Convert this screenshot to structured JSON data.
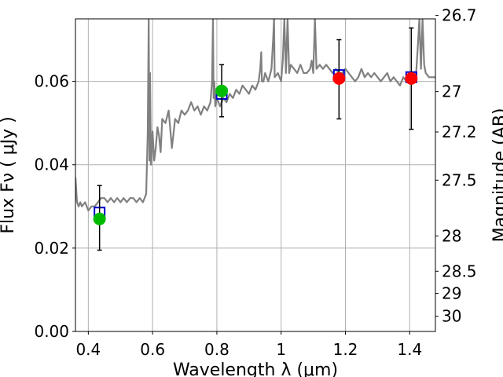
{
  "chart_data": {
    "type": "line",
    "xlabel": "Wavelength  λ (μm)",
    "ylabel": "Flux  Fν  ( μJy )",
    "y2label": "Magnitude (AB)",
    "xlim": [
      0.36,
      1.48
    ],
    "ylim": [
      0.0,
      0.075
    ],
    "grid": true,
    "x_ticks": [
      {
        "value": 0.4,
        "label": "0.4"
      },
      {
        "value": 0.6,
        "label": "0.6"
      },
      {
        "value": 0.8,
        "label": "0.8"
      },
      {
        "value": 1.0,
        "label": "1"
      },
      {
        "value": 1.2,
        "label": "1.2"
      },
      {
        "value": 1.4,
        "label": "1.4"
      }
    ],
    "y_ticks": [
      {
        "value": 0.0,
        "label": "0.00"
      },
      {
        "value": 0.02,
        "label": "0.02"
      },
      {
        "value": 0.04,
        "label": "0.04"
      },
      {
        "value": 0.06,
        "label": "0.06"
      }
    ],
    "y2_ticks": [
      {
        "value": 26.7,
        "label": "26.7"
      },
      {
        "value": 27.0,
        "label": "27"
      },
      {
        "value": 27.2,
        "label": "27.2"
      },
      {
        "value": 27.5,
        "label": "27.5"
      },
      {
        "value": 28.0,
        "label": "28"
      },
      {
        "value": 28.5,
        "label": "28.5"
      },
      {
        "value": 29.0,
        "label": "29"
      },
      {
        "value": 30.0,
        "label": "30"
      }
    ],
    "spectrum": {
      "color": "#808080",
      "x": [
        0.36,
        0.365,
        0.37,
        0.375,
        0.38,
        0.39,
        0.4,
        0.41,
        0.42,
        0.43,
        0.44,
        0.45,
        0.46,
        0.47,
        0.48,
        0.49,
        0.5,
        0.51,
        0.52,
        0.53,
        0.54,
        0.55,
        0.56,
        0.57,
        0.58,
        0.585,
        0.588,
        0.59,
        0.592,
        0.595,
        0.6,
        0.605,
        0.61,
        0.615,
        0.62,
        0.625,
        0.63,
        0.64,
        0.65,
        0.66,
        0.67,
        0.68,
        0.69,
        0.7,
        0.71,
        0.72,
        0.73,
        0.74,
        0.75,
        0.76,
        0.77,
        0.78,
        0.785,
        0.788,
        0.79,
        0.792,
        0.795,
        0.8,
        0.81,
        0.82,
        0.83,
        0.84,
        0.85,
        0.86,
        0.87,
        0.88,
        0.89,
        0.9,
        0.91,
        0.92,
        0.93,
        0.935,
        0.938,
        0.94,
        0.945,
        0.95,
        0.96,
        0.97,
        0.975,
        0.978,
        0.98,
        0.99,
        1.0,
        1.005,
        1.01,
        1.015,
        1.02,
        1.025,
        1.03,
        1.04,
        1.05,
        1.06,
        1.07,
        1.08,
        1.09,
        1.095,
        1.1,
        1.105,
        1.11,
        1.12,
        1.13,
        1.14,
        1.15,
        1.16,
        1.17,
        1.18,
        1.19,
        1.2,
        1.21,
        1.22,
        1.23,
        1.24,
        1.25,
        1.26,
        1.27,
        1.28,
        1.29,
        1.3,
        1.31,
        1.32,
        1.33,
        1.34,
        1.35,
        1.36,
        1.37,
        1.38,
        1.39,
        1.4,
        1.41,
        1.42,
        1.425,
        1.43,
        1.435,
        1.44,
        1.445,
        1.45,
        1.46,
        1.47,
        1.48
      ],
      "y": [
        0.037,
        0.031,
        0.03,
        0.031,
        0.03,
        0.031,
        0.029,
        0.03,
        0.03,
        0.031,
        0.032,
        0.032,
        0.031,
        0.032,
        0.031,
        0.032,
        0.031,
        0.032,
        0.031,
        0.032,
        0.032,
        0.031,
        0.032,
        0.031,
        0.033,
        0.048,
        0.075,
        0.041,
        0.062,
        0.04,
        0.048,
        0.041,
        0.044,
        0.049,
        0.047,
        0.043,
        0.051,
        0.05,
        0.053,
        0.044,
        0.051,
        0.05,
        0.053,
        0.052,
        0.053,
        0.055,
        0.053,
        0.054,
        0.052,
        0.054,
        0.053,
        0.055,
        0.06,
        0.075,
        0.056,
        0.06,
        0.054,
        0.056,
        0.054,
        0.056,
        0.055,
        0.057,
        0.056,
        0.058,
        0.057,
        0.059,
        0.058,
        0.057,
        0.059,
        0.058,
        0.06,
        0.063,
        0.067,
        0.06,
        0.06,
        0.062,
        0.06,
        0.063,
        0.07,
        0.075,
        0.061,
        0.062,
        0.06,
        0.065,
        0.075,
        0.062,
        0.075,
        0.062,
        0.064,
        0.063,
        0.062,
        0.064,
        0.062,
        0.062,
        0.063,
        0.065,
        0.062,
        0.075,
        0.063,
        0.064,
        0.063,
        0.064,
        0.063,
        0.062,
        0.063,
        0.062,
        0.062,
        0.063,
        0.062,
        0.061,
        0.06,
        0.061,
        0.063,
        0.061,
        0.062,
        0.061,
        0.062,
        0.061,
        0.06,
        0.061,
        0.062,
        0.06,
        0.061,
        0.06,
        0.059,
        0.061,
        0.06,
        0.061,
        0.06,
        0.062,
        0.068,
        0.075,
        0.063,
        0.075,
        0.064,
        0.062,
        0.061,
        0.061,
        0.061
      ]
    },
    "model_points": {
      "color": "#0000cc",
      "marker": "open-square",
      "x": [
        0.435,
        0.815,
        1.18,
        1.405
      ],
      "y": [
        0.0285,
        0.057,
        0.0615,
        0.061
      ]
    },
    "observed_points": [
      {
        "x": 0.435,
        "y": 0.027,
        "y_low": 0.0195,
        "y_high": 0.035,
        "color": "#00bb00"
      },
      {
        "x": 0.815,
        "y": 0.0577,
        "y_low": 0.0515,
        "y_high": 0.064,
        "color": "#00bb00"
      },
      {
        "x": 1.18,
        "y": 0.0607,
        "y_low": 0.051,
        "y_high": 0.07,
        "color": "#ff0000"
      },
      {
        "x": 1.405,
        "y": 0.0607,
        "y_low": 0.0485,
        "y_high": 0.0728,
        "color": "#ff0000"
      }
    ]
  }
}
